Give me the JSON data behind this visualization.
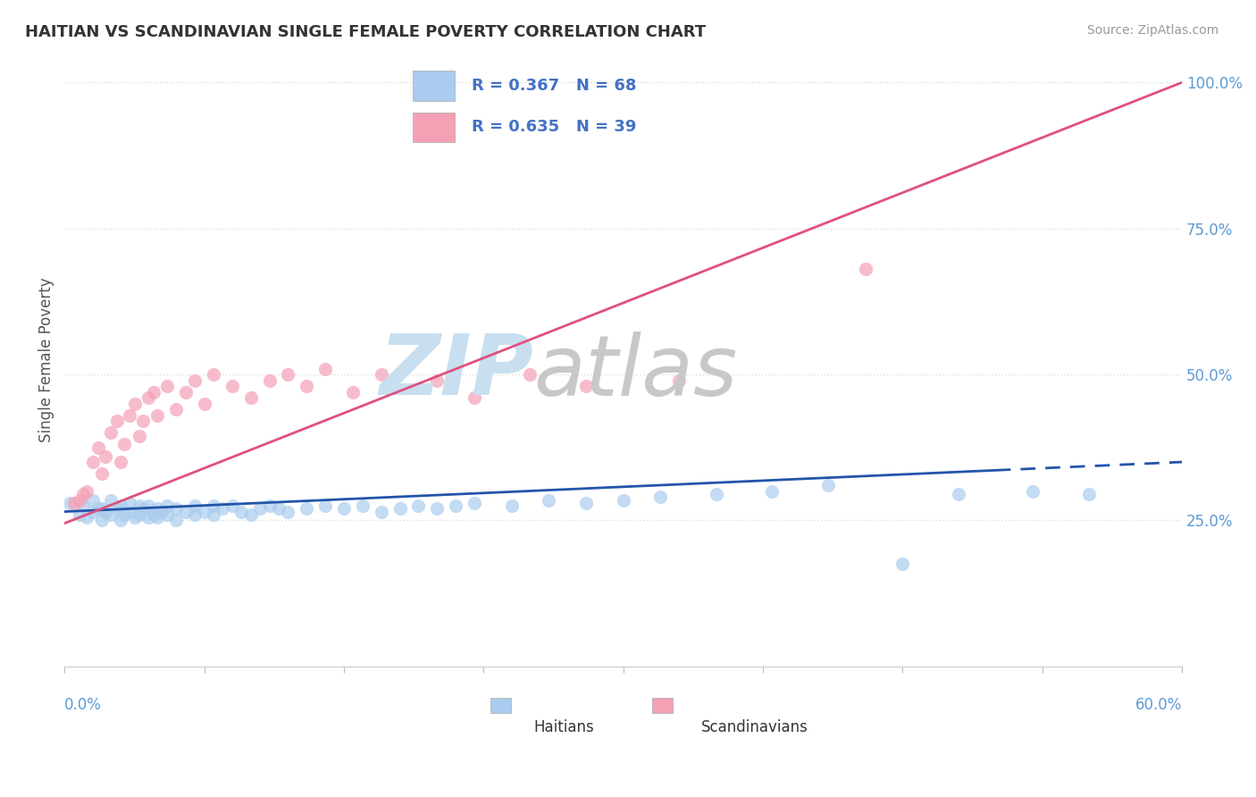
{
  "title": "HAITIAN VS SCANDINAVIAN SINGLE FEMALE POVERTY CORRELATION CHART",
  "source": "Source: ZipAtlas.com",
  "ylabel": "Single Female Poverty",
  "xlim": [
    0.0,
    0.6
  ],
  "ylim": [
    0.0,
    1.05
  ],
  "haitians_R": 0.367,
  "haitians_N": 68,
  "scandinavians_R": 0.635,
  "scandinavians_N": 39,
  "haitian_color": "#aaccee",
  "scandinavian_color": "#f5a0b5",
  "haitian_line_color": "#2255aa",
  "scandinavian_line_color": "#e05080",
  "legend_color": "#4472c4",
  "background_color": "#ffffff",
  "grid_color": "#dddddd",
  "ytick_color": "#5b9bd5",
  "xtick_color": "#5b9bd5",
  "watermark_zip_color": "#c8dff0",
  "watermark_atlas_color": "#c8c8c8",
  "haitians_x": [
    0.003,
    0.008,
    0.01,
    0.012,
    0.015,
    0.015,
    0.018,
    0.02,
    0.02,
    0.022,
    0.025,
    0.025,
    0.028,
    0.03,
    0.03,
    0.032,
    0.035,
    0.035,
    0.038,
    0.04,
    0.04,
    0.042,
    0.045,
    0.045,
    0.048,
    0.05,
    0.05,
    0.052,
    0.055,
    0.055,
    0.06,
    0.06,
    0.065,
    0.07,
    0.07,
    0.075,
    0.08,
    0.08,
    0.085,
    0.09,
    0.095,
    0.1,
    0.105,
    0.11,
    0.115,
    0.12,
    0.13,
    0.14,
    0.15,
    0.16,
    0.17,
    0.18,
    0.19,
    0.2,
    0.21,
    0.22,
    0.24,
    0.26,
    0.28,
    0.3,
    0.32,
    0.35,
    0.38,
    0.41,
    0.45,
    0.48,
    0.52,
    0.55
  ],
  "haitians_y": [
    0.28,
    0.26,
    0.275,
    0.255,
    0.265,
    0.285,
    0.27,
    0.25,
    0.27,
    0.265,
    0.26,
    0.285,
    0.27,
    0.25,
    0.275,
    0.26,
    0.265,
    0.28,
    0.255,
    0.26,
    0.275,
    0.27,
    0.255,
    0.275,
    0.26,
    0.255,
    0.27,
    0.265,
    0.26,
    0.275,
    0.25,
    0.27,
    0.265,
    0.26,
    0.275,
    0.265,
    0.26,
    0.275,
    0.27,
    0.275,
    0.265,
    0.26,
    0.27,
    0.275,
    0.27,
    0.265,
    0.27,
    0.275,
    0.27,
    0.275,
    0.265,
    0.27,
    0.275,
    0.27,
    0.275,
    0.28,
    0.275,
    0.285,
    0.28,
    0.285,
    0.29,
    0.295,
    0.3,
    0.31,
    0.175,
    0.295,
    0.3,
    0.295
  ],
  "scandinavians_x": [
    0.005,
    0.008,
    0.01,
    0.012,
    0.015,
    0.018,
    0.02,
    0.022,
    0.025,
    0.028,
    0.03,
    0.032,
    0.035,
    0.038,
    0.04,
    0.042,
    0.045,
    0.048,
    0.05,
    0.055,
    0.06,
    0.065,
    0.07,
    0.075,
    0.08,
    0.09,
    0.1,
    0.11,
    0.12,
    0.13,
    0.14,
    0.155,
    0.17,
    0.2,
    0.22,
    0.25,
    0.28,
    0.33,
    0.43
  ],
  "scandinavians_y": [
    0.28,
    0.285,
    0.295,
    0.3,
    0.35,
    0.375,
    0.33,
    0.36,
    0.4,
    0.42,
    0.35,
    0.38,
    0.43,
    0.45,
    0.395,
    0.42,
    0.46,
    0.47,
    0.43,
    0.48,
    0.44,
    0.47,
    0.49,
    0.45,
    0.5,
    0.48,
    0.46,
    0.49,
    0.5,
    0.48,
    0.51,
    0.47,
    0.5,
    0.49,
    0.46,
    0.5,
    0.48,
    0.49,
    0.68
  ],
  "haitian_line_x": [
    0.0,
    0.6
  ],
  "haitian_line_y": [
    0.265,
    0.35
  ],
  "scandinavian_line_x": [
    0.0,
    0.6
  ],
  "scandinavian_line_y": [
    0.245,
    1.0
  ]
}
